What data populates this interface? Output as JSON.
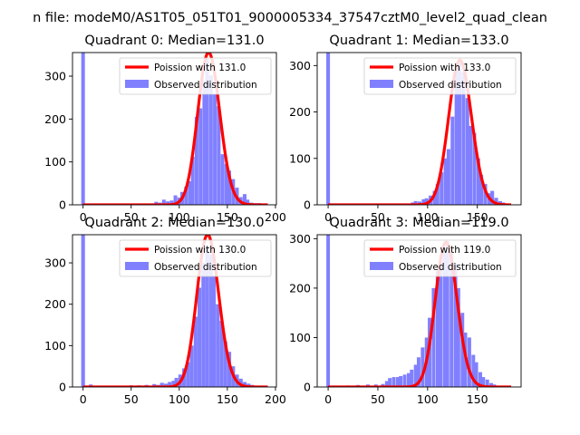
{
  "figure": {
    "suptitle": "n file: modeM0/AS1T05_051T01_9000005334_37547cztM0_level2_quad_clean"
  },
  "colors": {
    "hist_fill": "#8080ff",
    "poisson_line": "#ff0000",
    "axis": "#000000",
    "background": "#ffffff"
  },
  "chart_data": [
    {
      "type": "bar",
      "subtype": "histogram+line",
      "title": "Quadrant 0: Median=131.0",
      "xlabel": "",
      "ylabel": "",
      "xlim": [
        -11,
        201
      ],
      "ylim": [
        0,
        355
      ],
      "xticks": [
        0,
        50,
        100,
        150,
        200
      ],
      "yticks": [
        0,
        100,
        200,
        300
      ],
      "xtick_labels": [
        "0",
        "50",
        "100",
        "150",
        "200"
      ],
      "ytick_labels": [
        "0",
        "100",
        "200",
        "300"
      ],
      "grid": false,
      "legend_position": "upper right",
      "legend": [
        "Poission with 131.0",
        "Observed distribution"
      ],
      "hist": {
        "name": "Observed distribution",
        "bin_width": 3.8,
        "bins": [
          {
            "x": 0,
            "count": 370
          },
          {
            "x": 76,
            "count": 7
          },
          {
            "x": 80,
            "count": 5
          },
          {
            "x": 84,
            "count": 12
          },
          {
            "x": 88,
            "count": 8
          },
          {
            "x": 92,
            "count": 10
          },
          {
            "x": 96,
            "count": 22
          },
          {
            "x": 100,
            "count": 17
          },
          {
            "x": 103,
            "count": 30
          },
          {
            "x": 107,
            "count": 42
          },
          {
            "x": 111,
            "count": 55
          },
          {
            "x": 114,
            "count": 112
          },
          {
            "x": 118,
            "count": 205
          },
          {
            "x": 122,
            "count": 225
          },
          {
            "x": 126,
            "count": 290
          },
          {
            "x": 129,
            "count": 340
          },
          {
            "x": 133,
            "count": 302
          },
          {
            "x": 137,
            "count": 258
          },
          {
            "x": 141,
            "count": 230
          },
          {
            "x": 145,
            "count": 118
          },
          {
            "x": 149,
            "count": 95
          },
          {
            "x": 152,
            "count": 80
          },
          {
            "x": 156,
            "count": 60
          },
          {
            "x": 160,
            "count": 40
          },
          {
            "x": 164,
            "count": 18
          },
          {
            "x": 168,
            "count": 25
          },
          {
            "x": 171,
            "count": 12
          },
          {
            "x": 175,
            "count": 5
          },
          {
            "x": 179,
            "count": 4
          },
          {
            "x": 183,
            "count": 4
          },
          {
            "x": 187,
            "count": 3
          }
        ]
      },
      "poisson": {
        "name": "Poission with 131.0",
        "mean": 131.0,
        "scale": 1.0,
        "x_range": [
          0,
          192
        ]
      }
    },
    {
      "type": "bar",
      "subtype": "histogram+line",
      "title": "Quadrant 1: Median=133.0",
      "xlabel": "",
      "ylabel": "",
      "xlim": [
        -11,
        194
      ],
      "ylim": [
        0,
        328
      ],
      "xticks": [
        0,
        50,
        100,
        150
      ],
      "yticks": [
        0,
        100,
        200,
        300
      ],
      "xtick_labels": [
        "0",
        "50",
        "100",
        "150"
      ],
      "ytick_labels": [
        "0",
        "100",
        "200",
        "300"
      ],
      "grid": false,
      "legend_position": "upper right",
      "legend": [
        "Poission with 133.0",
        "Observed distribution"
      ],
      "hist": {
        "name": "Observed distribution",
        "bin_width": 3.7,
        "bins": [
          {
            "x": 0,
            "count": 340
          },
          {
            "x": 85,
            "count": 5
          },
          {
            "x": 88,
            "count": 8
          },
          {
            "x": 92,
            "count": 7
          },
          {
            "x": 96,
            "count": 12
          },
          {
            "x": 99,
            "count": 14
          },
          {
            "x": 103,
            "count": 20
          },
          {
            "x": 107,
            "count": 30
          },
          {
            "x": 110,
            "count": 45
          },
          {
            "x": 114,
            "count": 70
          },
          {
            "x": 118,
            "count": 100
          },
          {
            "x": 121,
            "count": 120
          },
          {
            "x": 125,
            "count": 190
          },
          {
            "x": 129,
            "count": 290
          },
          {
            "x": 132,
            "count": 310
          },
          {
            "x": 136,
            "count": 285
          },
          {
            "x": 140,
            "count": 230
          },
          {
            "x": 143,
            "count": 170
          },
          {
            "x": 147,
            "count": 155
          },
          {
            "x": 151,
            "count": 100
          },
          {
            "x": 154,
            "count": 65
          },
          {
            "x": 158,
            "count": 45
          },
          {
            "x": 162,
            "count": 25
          },
          {
            "x": 165,
            "count": 30
          },
          {
            "x": 169,
            "count": 15
          },
          {
            "x": 173,
            "count": 8
          },
          {
            "x": 176,
            "count": 5
          }
        ]
      },
      "poisson": {
        "name": "Poission with 133.0",
        "mean": 133.0,
        "scale": 0.95,
        "x_range": [
          0,
          184
        ]
      }
    },
    {
      "type": "bar",
      "subtype": "histogram+line",
      "title": "Quadrant 2: Median=130.0",
      "xlabel": "",
      "ylabel": "",
      "xlim": [
        -11,
        201
      ],
      "ylim": [
        0,
        368
      ],
      "xticks": [
        0,
        50,
        100,
        150,
        200
      ],
      "yticks": [
        0,
        100,
        200,
        300
      ],
      "xtick_labels": [
        "0",
        "50",
        "100",
        "150",
        "200"
      ],
      "ytick_labels": [
        "0",
        "100",
        "200",
        "300"
      ],
      "grid": false,
      "legend_position": "upper right",
      "legend": [
        "Poission with 130.0",
        "Observed distribution"
      ],
      "hist": {
        "name": "Observed distribution",
        "bin_width": 3.9,
        "bins": [
          {
            "x": 0,
            "count": 380
          },
          {
            "x": 8,
            "count": 6
          },
          {
            "x": 20,
            "count": 3
          },
          {
            "x": 38,
            "count": 3
          },
          {
            "x": 50,
            "count": 4
          },
          {
            "x": 58,
            "count": 4
          },
          {
            "x": 66,
            "count": 5
          },
          {
            "x": 74,
            "count": 7
          },
          {
            "x": 78,
            "count": 5
          },
          {
            "x": 82,
            "count": 10
          },
          {
            "x": 86,
            "count": 8
          },
          {
            "x": 90,
            "count": 12
          },
          {
            "x": 94,
            "count": 15
          },
          {
            "x": 97,
            "count": 22
          },
          {
            "x": 101,
            "count": 30
          },
          {
            "x": 105,
            "count": 45
          },
          {
            "x": 109,
            "count": 60
          },
          {
            "x": 113,
            "count": 100
          },
          {
            "x": 117,
            "count": 170
          },
          {
            "x": 121,
            "count": 240
          },
          {
            "x": 125,
            "count": 300
          },
          {
            "x": 129,
            "count": 340
          },
          {
            "x": 133,
            "count": 320
          },
          {
            "x": 136,
            "count": 270
          },
          {
            "x": 140,
            "count": 200
          },
          {
            "x": 144,
            "count": 160
          },
          {
            "x": 148,
            "count": 110
          },
          {
            "x": 152,
            "count": 85
          },
          {
            "x": 156,
            "count": 50
          },
          {
            "x": 160,
            "count": 30
          },
          {
            "x": 164,
            "count": 20
          },
          {
            "x": 168,
            "count": 12
          },
          {
            "x": 172,
            "count": 8
          },
          {
            "x": 176,
            "count": 5
          },
          {
            "x": 180,
            "count": 3
          },
          {
            "x": 184,
            "count": 3
          }
        ]
      },
      "poisson": {
        "name": "Poission with 130.0",
        "mean": 130.0,
        "scale": 1.0,
        "x_range": [
          0,
          192
        ]
      }
    },
    {
      "type": "bar",
      "subtype": "histogram+line",
      "title": "Quadrant 3: Median=119.0",
      "xlabel": "",
      "ylabel": "",
      "xlim": [
        -11,
        194
      ],
      "ylim": [
        0,
        308
      ],
      "xticks": [
        0,
        50,
        100,
        150
      ],
      "yticks": [
        0,
        100,
        200,
        300
      ],
      "xtick_labels": [
        "0",
        "50",
        "100",
        "150"
      ],
      "ytick_labels": [
        "0",
        "100",
        "200",
        "300"
      ],
      "grid": false,
      "legend_position": "upper right",
      "legend": [
        "Poission with 119.0",
        "Observed distribution"
      ],
      "hist": {
        "name": "Observed distribution",
        "bin_width": 3.6,
        "bins": [
          {
            "x": 0,
            "count": 320
          },
          {
            "x": 20,
            "count": 3
          },
          {
            "x": 30,
            "count": 4
          },
          {
            "x": 40,
            "count": 5
          },
          {
            "x": 48,
            "count": 5
          },
          {
            "x": 55,
            "count": 6
          },
          {
            "x": 59,
            "count": 12
          },
          {
            "x": 62,
            "count": 18
          },
          {
            "x": 66,
            "count": 20
          },
          {
            "x": 70,
            "count": 20
          },
          {
            "x": 73,
            "count": 22
          },
          {
            "x": 77,
            "count": 25
          },
          {
            "x": 81,
            "count": 28
          },
          {
            "x": 84,
            "count": 35
          },
          {
            "x": 88,
            "count": 45
          },
          {
            "x": 91,
            "count": 60
          },
          {
            "x": 95,
            "count": 80
          },
          {
            "x": 99,
            "count": 100
          },
          {
            "x": 102,
            "count": 140
          },
          {
            "x": 106,
            "count": 200
          },
          {
            "x": 110,
            "count": 235
          },
          {
            "x": 113,
            "count": 250
          },
          {
            "x": 117,
            "count": 275
          },
          {
            "x": 120,
            "count": 295
          },
          {
            "x": 124,
            "count": 270
          },
          {
            "x": 128,
            "count": 250
          },
          {
            "x": 131,
            "count": 200
          },
          {
            "x": 135,
            "count": 150
          },
          {
            "x": 138,
            "count": 110
          },
          {
            "x": 142,
            "count": 100
          },
          {
            "x": 146,
            "count": 65
          },
          {
            "x": 149,
            "count": 50
          },
          {
            "x": 153,
            "count": 30
          },
          {
            "x": 156,
            "count": 20
          },
          {
            "x": 160,
            "count": 15
          },
          {
            "x": 164,
            "count": 8
          },
          {
            "x": 167,
            "count": 5
          }
        ]
      },
      "poisson": {
        "name": "Poission with 119.0",
        "mean": 119.0,
        "scale": 0.95,
        "x_range": [
          0,
          184
        ]
      }
    }
  ]
}
